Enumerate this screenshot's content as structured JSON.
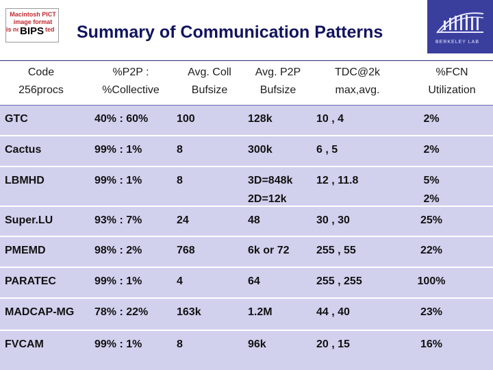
{
  "header": {
    "logo_placeholder_lines": [
      "Macintosh PICT",
      "image format",
      "is not supported"
    ],
    "logo_label": "BIPS",
    "title": "Summary of Communication Patterns",
    "lab_logo_text": "BERKELEY LAB"
  },
  "table": {
    "columns": [
      {
        "line1": "Code",
        "line2": "256procs"
      },
      {
        "line1": "%P2P :",
        "line2": "%Collective"
      },
      {
        "line1": "Avg. Coll",
        "line2": "Bufsize"
      },
      {
        "line1": "Avg. P2P",
        "line2": "Bufsize"
      },
      {
        "line1": "TDC@2k",
        "line2": "max,avg."
      },
      {
        "line1": "%FCN",
        "line2": "Utilization"
      }
    ],
    "rows": [
      {
        "code": "GTC",
        "p2p": "40%  :  60%",
        "coll": "100",
        "pbuf": "128k",
        "pbuf2": "",
        "tdc": "10  , 4",
        "fcn": "2%",
        "fcn2": ""
      },
      {
        "code": "Cactus",
        "p2p": "99%  :  1%",
        "coll": "8",
        "pbuf": "300k",
        "pbuf2": "",
        "tdc": "6    , 5",
        "fcn": "2%",
        "fcn2": ""
      },
      {
        "code": "LBMHD",
        "p2p": "99%  :  1%",
        "coll": "8",
        "pbuf": "3D=848k",
        "pbuf2": "2D=12k",
        "tdc": "12  , 11.8",
        "fcn": "5%",
        "fcn2": "2%"
      },
      {
        "code": "Super.LU",
        "p2p": "93%  :  7%",
        "coll": "24",
        "pbuf": "48",
        "pbuf2": "",
        "tdc": "30  , 30",
        "fcn": "25%",
        "fcn2": ""
      },
      {
        "code": "PMEMD",
        "p2p": "98%  :  2%",
        "coll": "768",
        "pbuf": "6k or 72",
        "pbuf2": "",
        "tdc": "255 , 55",
        "fcn": "22%",
        "fcn2": ""
      },
      {
        "code": "PARATEC",
        "p2p": "99%  :  1%",
        "coll": "4",
        "pbuf": "64",
        "pbuf2": "",
        "tdc": "255 , 255",
        "fcn": "100%",
        "fcn2": ""
      },
      {
        "code": "MADCAP-MG",
        "p2p": "78%  :  22%",
        "coll": "163k",
        "pbuf": "1.2M",
        "pbuf2": "",
        "tdc": "44   , 40",
        "fcn": "23%",
        "fcn2": ""
      },
      {
        "code": "FVCAM",
        "p2p": "99%  :  1%",
        "coll": "8",
        "pbuf": "96k",
        "pbuf2": "",
        "tdc": "20   , 15",
        "fcn": "16%",
        "fcn2": ""
      }
    ]
  },
  "colors": {
    "title": "#12145e",
    "row_fill": "#d1d1ee",
    "lab_logo_bg": "#3a3f9e",
    "pict_text": "#c0282d"
  }
}
